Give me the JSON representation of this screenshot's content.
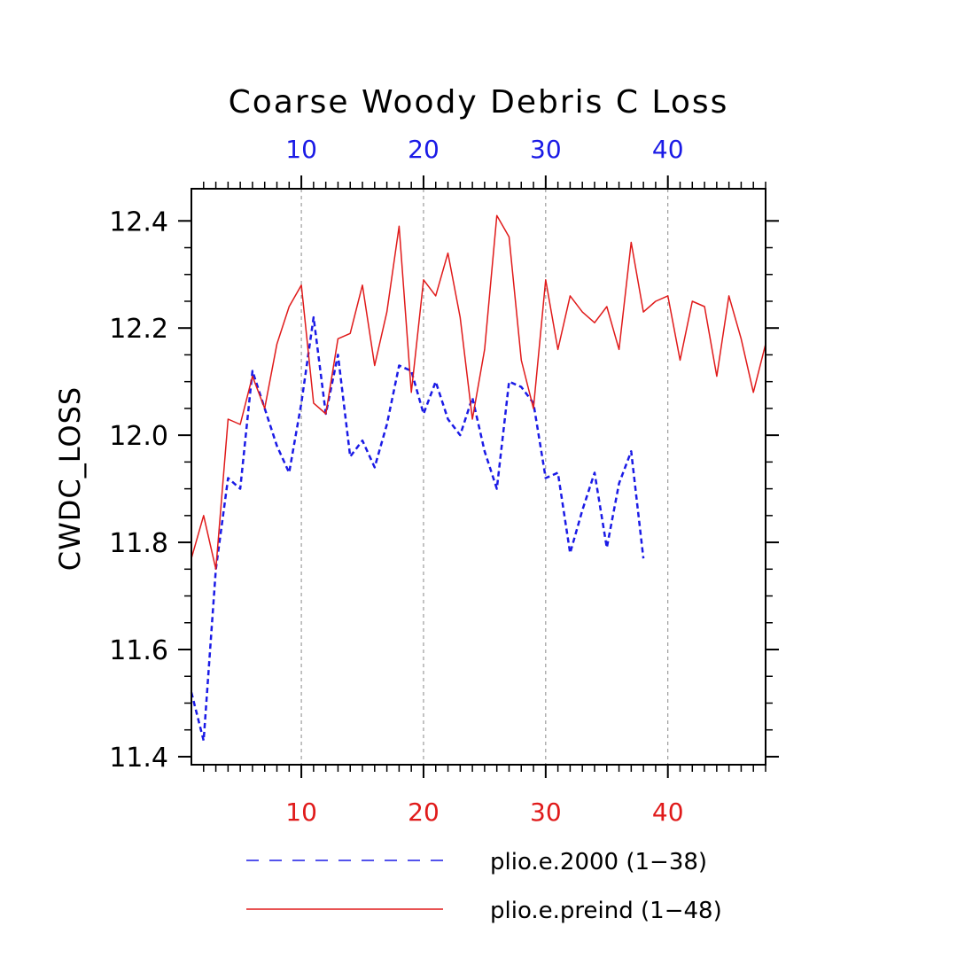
{
  "chart_data": {
    "type": "line",
    "title": "Coarse Woody Debris C Loss",
    "ylabel": "CWDC_LOSS",
    "xlabel": "",
    "xlim": [
      1,
      48
    ],
    "ylim": [
      11.385,
      12.46
    ],
    "y_ticks": [
      11.4,
      11.6,
      11.8,
      12.0,
      12.2,
      12.4
    ],
    "y_tick_labels": [
      "11.4",
      "11.6",
      "11.8",
      "12.0",
      "12.2",
      "12.4"
    ],
    "x_ticks": [
      10,
      20,
      30,
      40
    ],
    "x_tick_labels": [
      "10",
      "20",
      "30",
      "40"
    ],
    "x_top_color": "#1a1ae6",
    "x_bottom_color": "#e01a1a",
    "grid": "vertical-dashed",
    "series": [
      {
        "name": "plio.e.2000",
        "legend": "plio.e.2000 (1−38)",
        "color": "#1a1ae6",
        "style": "dashed",
        "x": [
          1,
          2,
          3,
          4,
          5,
          6,
          7,
          8,
          9,
          10,
          11,
          12,
          13,
          14,
          15,
          16,
          17,
          18,
          19,
          20,
          21,
          22,
          23,
          24,
          25,
          26,
          27,
          28,
          29,
          30,
          31,
          32,
          33,
          34,
          35,
          36,
          37,
          38
        ],
        "values": [
          11.52,
          11.43,
          11.75,
          11.92,
          11.9,
          12.12,
          12.05,
          11.98,
          11.93,
          12.06,
          12.22,
          12.04,
          12.15,
          11.96,
          11.99,
          11.94,
          12.02,
          12.13,
          12.12,
          12.04,
          12.1,
          12.03,
          12.0,
          12.07,
          11.97,
          11.9,
          12.1,
          12.09,
          12.06,
          11.92,
          11.93,
          11.78,
          11.86,
          11.93,
          11.79,
          11.91,
          11.97,
          11.77
        ]
      },
      {
        "name": "plio.e.preind",
        "legend": "plio.e.preind (1−48)",
        "color": "#e01a1a",
        "style": "solid",
        "x": [
          1,
          2,
          3,
          4,
          5,
          6,
          7,
          8,
          9,
          10,
          11,
          12,
          13,
          14,
          15,
          16,
          17,
          18,
          19,
          20,
          21,
          22,
          23,
          24,
          25,
          26,
          27,
          28,
          29,
          30,
          31,
          32,
          33,
          34,
          35,
          36,
          37,
          38,
          39,
          40,
          41,
          42,
          43,
          44,
          45,
          46,
          47,
          48
        ],
        "values": [
          11.77,
          11.85,
          11.75,
          12.03,
          12.02,
          12.11,
          12.05,
          12.17,
          12.24,
          12.28,
          12.06,
          12.04,
          12.18,
          12.19,
          12.28,
          12.13,
          12.23,
          12.39,
          12.08,
          12.29,
          12.26,
          12.34,
          12.22,
          12.03,
          12.16,
          12.41,
          12.37,
          12.14,
          12.05,
          12.29,
          12.16,
          12.26,
          12.23,
          12.21,
          12.24,
          12.16,
          12.36,
          12.23,
          12.25,
          12.26,
          12.14,
          12.25,
          12.24,
          12.11,
          12.26,
          12.18,
          12.08,
          12.17
        ]
      }
    ],
    "legend_position": "bottom"
  }
}
